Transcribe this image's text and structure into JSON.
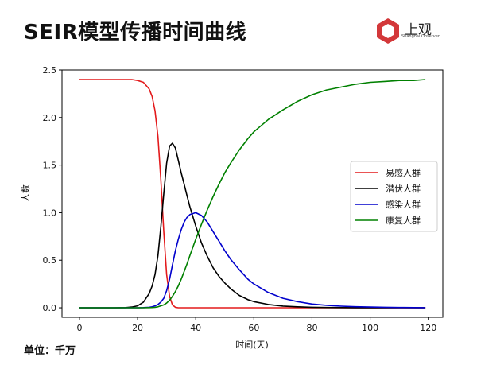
{
  "header": {
    "title": "SEIR模型传播时间曲线"
  },
  "brand": {
    "name": "上观",
    "subtitle": "Shanghai Observer",
    "logo_color": "#d3383a"
  },
  "footer": {
    "unit_label": "单位：千万"
  },
  "chart_data": {
    "type": "line",
    "title": "",
    "xlabel": "时间(天)",
    "ylabel": "人数",
    "xlim": [
      -6,
      125
    ],
    "ylim": [
      -0.1,
      2.5
    ],
    "xticks": [
      0,
      20,
      40,
      60,
      80,
      100,
      120
    ],
    "yticks": [
      0.0,
      0.5,
      1.0,
      1.5,
      2.0,
      2.5
    ],
    "xtick_labels": [
      "0",
      "20",
      "40",
      "60",
      "80",
      "100",
      "120"
    ],
    "ytick_labels": [
      "0.0",
      "0.5",
      "1.0",
      "1.5",
      "2.0",
      "2.5"
    ],
    "grid": false,
    "legend_position": "center-right",
    "x": [
      0,
      4,
      8,
      12,
      16,
      18,
      20,
      22,
      24,
      25,
      26,
      27,
      28,
      29,
      30,
      31,
      32,
      33,
      34,
      35,
      36,
      37,
      38,
      40,
      42,
      44,
      46,
      48,
      50,
      52,
      55,
      58,
      60,
      65,
      70,
      75,
      80,
      85,
      90,
      95,
      100,
      105,
      110,
      115,
      119
    ],
    "series": [
      {
        "name": "易感人群",
        "color": "#e31a1c",
        "values": [
          2.4,
          2.4,
          2.4,
          2.4,
          2.4,
          2.4,
          2.39,
          2.37,
          2.3,
          2.22,
          2.07,
          1.8,
          1.35,
          0.8,
          0.35,
          0.12,
          0.03,
          0.005,
          0,
          0,
          0,
          0,
          0,
          0,
          0,
          0,
          0,
          0,
          0,
          0,
          0,
          0,
          0,
          0,
          0,
          0,
          0,
          0,
          0,
          0,
          0,
          0,
          0,
          0,
          0
        ]
      },
      {
        "name": "潜伏人群",
        "color": "#000000",
        "values": [
          0,
          0,
          0,
          0,
          0.002,
          0.008,
          0.02,
          0.06,
          0.15,
          0.23,
          0.35,
          0.55,
          0.85,
          1.2,
          1.52,
          1.7,
          1.73,
          1.68,
          1.55,
          1.42,
          1.3,
          1.18,
          1.06,
          0.86,
          0.68,
          0.54,
          0.42,
          0.33,
          0.26,
          0.2,
          0.13,
          0.085,
          0.065,
          0.035,
          0.018,
          0.01,
          0.005,
          0.003,
          0.002,
          0.001,
          0,
          0,
          0,
          0,
          0
        ]
      },
      {
        "name": "感染人群",
        "color": "#0000cc",
        "values": [
          0,
          0,
          0,
          0,
          0,
          0,
          0,
          0.002,
          0.005,
          0.01,
          0.02,
          0.035,
          0.06,
          0.1,
          0.18,
          0.3,
          0.45,
          0.6,
          0.72,
          0.82,
          0.9,
          0.95,
          0.98,
          1.0,
          0.97,
          0.9,
          0.8,
          0.7,
          0.6,
          0.51,
          0.4,
          0.3,
          0.25,
          0.16,
          0.1,
          0.065,
          0.04,
          0.026,
          0.017,
          0.011,
          0.008,
          0.005,
          0.003,
          0.002,
          0.001
        ]
      },
      {
        "name": "康复人群",
        "color": "#008000",
        "values": [
          0,
          0,
          0,
          0,
          0,
          0,
          0,
          0,
          0.002,
          0.003,
          0.005,
          0.01,
          0.02,
          0.03,
          0.05,
          0.08,
          0.12,
          0.17,
          0.23,
          0.3,
          0.38,
          0.46,
          0.55,
          0.72,
          0.88,
          1.03,
          1.17,
          1.3,
          1.42,
          1.52,
          1.66,
          1.78,
          1.85,
          1.98,
          2.08,
          2.17,
          2.24,
          2.29,
          2.32,
          2.35,
          2.37,
          2.38,
          2.39,
          2.39,
          2.4
        ]
      }
    ]
  }
}
